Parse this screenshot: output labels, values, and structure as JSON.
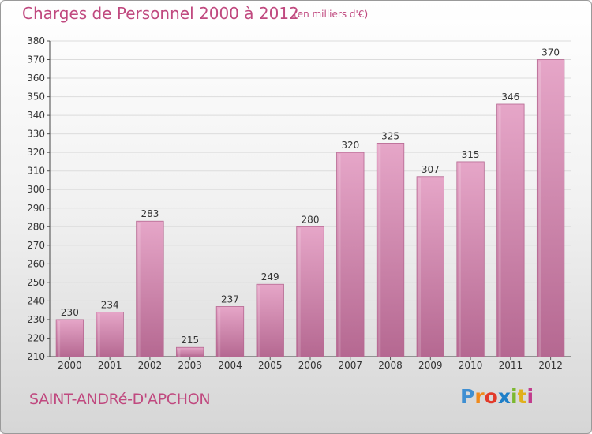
{
  "title": "Charges de Personnel 2000 à 2012",
  "subtitle": "(en milliers d'€)",
  "commune": "SAINT-ANDRé-D'APCHON",
  "logo": {
    "text": "Proxiti",
    "letters": [
      "P",
      "r",
      "o",
      "x",
      "i",
      "t",
      "i"
    ]
  },
  "colors": {
    "bar": "#d88fb4",
    "bar_dark": "#b56891",
    "text_accent": "#c0497f"
  },
  "chart_data": {
    "type": "bar",
    "title": "Charges de Personnel 2000 à 2012",
    "subtitle": "(en milliers d'€)",
    "categories": [
      "2000",
      "2001",
      "2002",
      "2003",
      "2004",
      "2005",
      "2006",
      "2007",
      "2008",
      "2009",
      "2010",
      "2011",
      "2012"
    ],
    "values": [
      230,
      234,
      283,
      215,
      237,
      249,
      280,
      320,
      325,
      307,
      315,
      346,
      370
    ],
    "ylim": [
      210,
      380
    ],
    "yticks": [
      210,
      220,
      230,
      240,
      250,
      260,
      270,
      280,
      290,
      300,
      310,
      320,
      330,
      340,
      350,
      360,
      370,
      380
    ],
    "grid": true,
    "data_labels": true
  }
}
